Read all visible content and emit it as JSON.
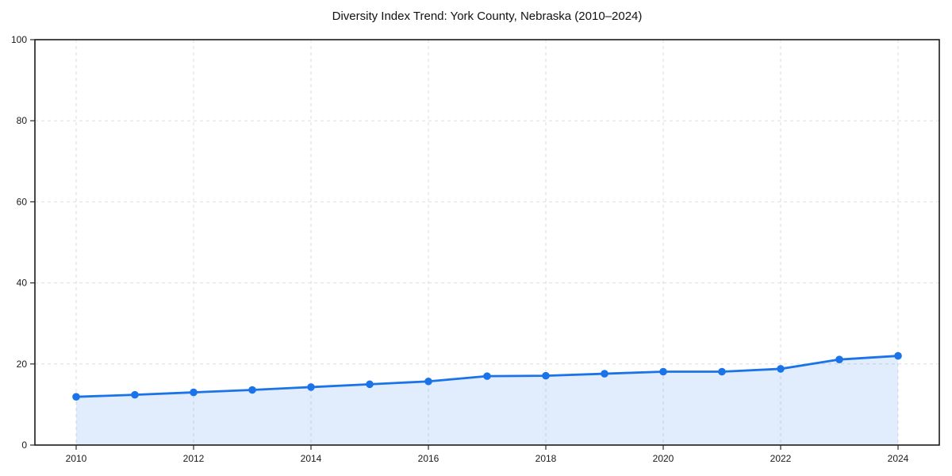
{
  "chart_data": {
    "type": "line",
    "title": "Diversity Index Trend: York County, Nebraska (2010–2024)",
    "x": [
      2010,
      2011,
      2012,
      2013,
      2014,
      2015,
      2016,
      2017,
      2018,
      2019,
      2020,
      2021,
      2022,
      2023,
      2024
    ],
    "values": [
      11.9,
      12.4,
      13.0,
      13.6,
      14.3,
      15.0,
      15.7,
      17.0,
      17.1,
      17.6,
      18.1,
      18.1,
      18.8,
      21.1,
      22.0
    ],
    "xlabel": "",
    "ylabel": "",
    "ylim": [
      0,
      100
    ],
    "yticks": [
      0,
      20,
      40,
      60,
      80,
      100
    ],
    "xticks": [
      2010,
      2012,
      2014,
      2016,
      2018,
      2020,
      2022,
      2024
    ],
    "grid": true,
    "legend": "none",
    "marker": "circle",
    "line_color": "#1a73e8",
    "fill_color": "rgba(26,115,232,0.13)",
    "axis_color": "#1a1a1a",
    "grid_color": "#dedede",
    "background_color": "#ffffff"
  }
}
